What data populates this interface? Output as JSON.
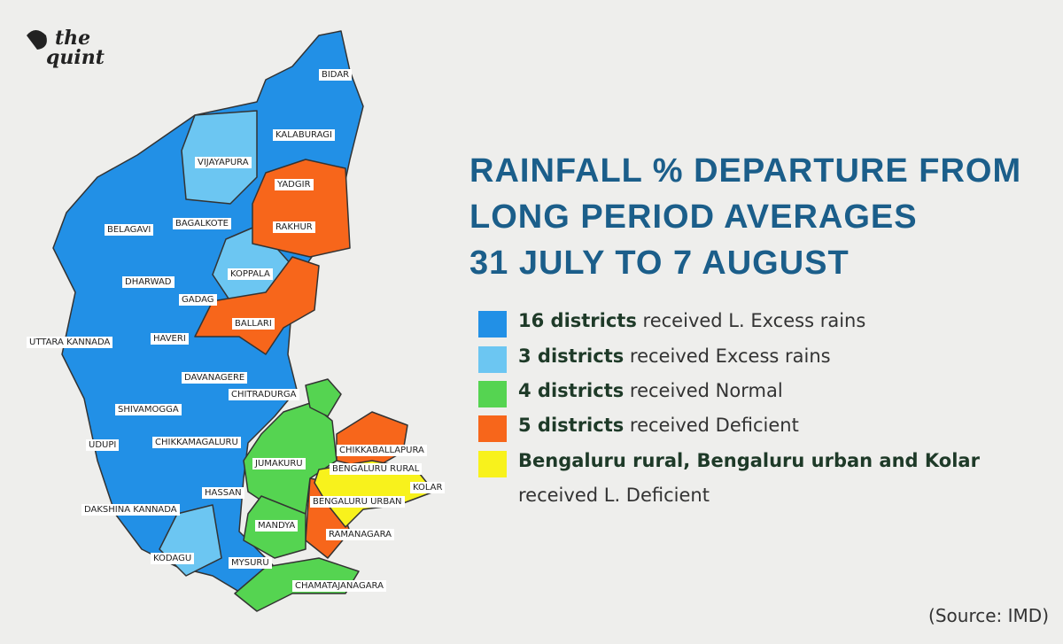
{
  "logo": {
    "line1": "the",
    "line2": "quint"
  },
  "title": [
    "RAINFALL % DEPARTURE FROM",
    "LONG PERIOD AVERAGES",
    "31 JULY TO 7 AUGUST"
  ],
  "legend": [
    {
      "color": "#2290e6",
      "bold": "16 districts",
      "text": "received L. Excess rains"
    },
    {
      "color": "#6cc6f2",
      "bold": "3 districts",
      "text": "received Excess rains"
    },
    {
      "color": "#55d451",
      "bold": "4 districts",
      "text": "received Normal"
    },
    {
      "color": "#f7661b",
      "bold": "5 districts",
      "text": "received Deficient"
    },
    {
      "color": "#f8f21c",
      "bold": "Bengaluru rural, Bengaluru urban and Kolar",
      "text": "received L. Deficient"
    }
  ],
  "districts": [
    "BIDAR",
    "KALABURAGI",
    "VIJAYAPURA",
    "YADGIR",
    "BAGALKOTE",
    "RAKHUR",
    "BELAGAVI",
    "KOPPALA",
    "DHARWAD",
    "GADAG",
    "BALLARI",
    "UTTARA KANNADA",
    "HAVERI",
    "DAVANAGERE",
    "CHITRADURGA",
    "SHIVAMOGGA",
    "UDUPI",
    "CHIKKAMAGALURU",
    "CHIKKABALLAPURA",
    "JUMAKURU",
    "BENGALURU RURAL",
    "KOLAR",
    "BENGALURU URBAN",
    "HASSAN",
    "DAKSHINA KANNADA",
    "MANDYA",
    "RAMANAGARA",
    "KODAGU",
    "MYSURU",
    "CHAMATAJANAGARA"
  ],
  "source": "(Source: IMD)"
}
